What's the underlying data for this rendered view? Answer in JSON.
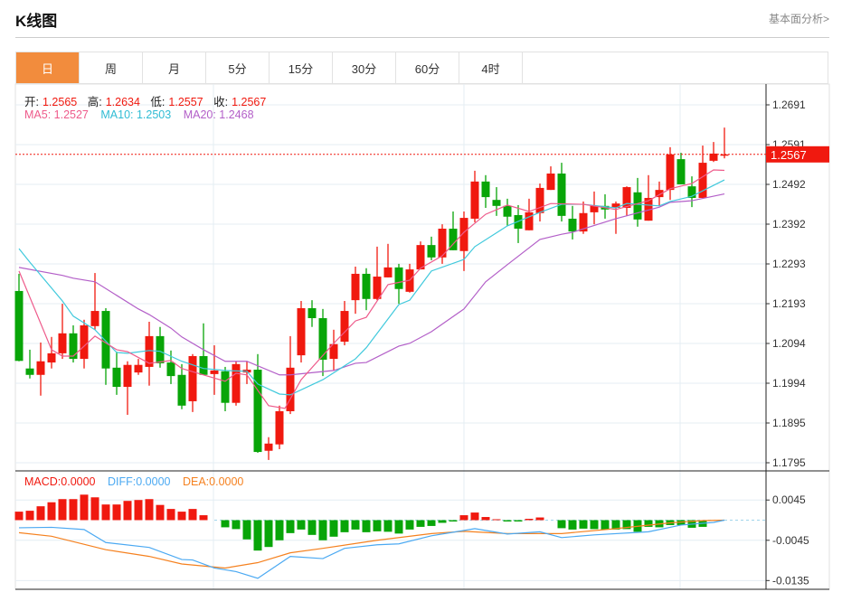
{
  "header": {
    "title": "K线图",
    "link": "基本面分析>"
  },
  "tabs": [
    {
      "label": "日",
      "active": true
    },
    {
      "label": "周"
    },
    {
      "label": "月"
    },
    {
      "label": "5分"
    },
    {
      "label": "15分"
    },
    {
      "label": "30分"
    },
    {
      "label": "60分"
    },
    {
      "label": "4时"
    }
  ],
  "ohlc_legend": {
    "open_label": "开:",
    "open": "1.2565",
    "high_label": "高:",
    "high": "1.2634",
    "low_label": "低:",
    "low": "1.2557",
    "close_label": "收:",
    "close": "1.2567"
  },
  "ma_legend": {
    "ma5": "MA5: 1.2527",
    "ma10": "MA10: 1.2503",
    "ma20": "MA20: 1.2468"
  },
  "macd_legend": {
    "macd": "MACD:0.0000",
    "diff": "DIFF:0.0000",
    "dea": "DEA:0.0000"
  },
  "colors": {
    "up": "#f0190f",
    "down": "#08a508",
    "ma5": "#ee5b8b",
    "ma10": "#40c9dc",
    "ma20": "#b35fc8",
    "diff": "#4ba9f2",
    "dea": "#f5811f",
    "accent": "#f28c3d"
  },
  "chart_data": [
    {
      "type": "candlestick",
      "title": "K线图",
      "y_ticks": [
        "1.2691",
        "1.2591",
        "1.2492",
        "1.2392",
        "1.2293",
        "1.2193",
        "1.2094",
        "1.1994",
        "1.1895",
        "1.1795"
      ],
      "ylim": [
        1.1795,
        1.2691
      ],
      "current_price": "1.2567",
      "candles": [
        [
          1.2225,
          1.2268,
          1.2049,
          1.205
        ],
        [
          1.2031,
          1.2078,
          1.2006,
          1.2015
        ],
        [
          1.2015,
          1.2096,
          1.1963,
          1.2049
        ],
        [
          1.2046,
          1.211,
          1.2031,
          1.2069
        ],
        [
          1.2069,
          1.2193,
          1.2055,
          1.2119
        ],
        [
          1.2119,
          1.2139,
          1.2046,
          1.2055
        ],
        [
          1.2055,
          1.2153,
          1.2031,
          1.2139
        ],
        [
          1.2137,
          1.227,
          1.2128,
          1.2175
        ],
        [
          1.2175,
          1.2182,
          1.199,
          1.2031
        ],
        [
          1.2033,
          1.2073,
          1.1965,
          1.1985
        ],
        [
          1.1985,
          1.2049,
          1.1915,
          1.204
        ],
        [
          1.2021,
          1.2055,
          1.2015,
          1.204
        ],
        [
          1.2035,
          1.2148,
          1.1988,
          1.2112
        ],
        [
          1.2112,
          1.2135,
          1.2033,
          1.2044
        ],
        [
          1.2046,
          1.2076,
          1.1992,
          1.2012
        ],
        [
          1.2015,
          1.2042,
          1.1929,
          1.1938
        ],
        [
          1.1949,
          1.2067,
          1.1922,
          1.2062
        ],
        [
          1.2062,
          1.2144,
          1.2015,
          1.2015
        ],
        [
          1.2017,
          1.2089,
          1.1965,
          1.2026
        ],
        [
          1.2024,
          1.2035,
          1.1924,
          1.1945
        ],
        [
          1.1945,
          1.2049,
          1.1938,
          1.2042
        ],
        [
          1.2021,
          1.2049,
          1.1992,
          1.2028
        ],
        [
          1.2028,
          1.2067,
          1.182,
          1.1822
        ],
        [
          1.1825,
          1.1859,
          1.1802,
          1.1843
        ],
        [
          1.1841,
          1.1938,
          1.1829,
          1.1924
        ],
        [
          1.1924,
          1.2112,
          1.1917,
          1.2033
        ],
        [
          1.2064,
          1.22,
          1.2046,
          1.2182
        ],
        [
          1.2182,
          1.2202,
          1.2135,
          1.2157
        ],
        [
          1.2157,
          1.218,
          1.2012,
          1.2053
        ],
        [
          1.2055,
          1.2128,
          1.2026,
          1.2092
        ],
        [
          1.2098,
          1.22,
          1.2089,
          1.2175
        ],
        [
          1.2202,
          1.2286,
          1.2168,
          1.2268
        ],
        [
          1.2268,
          1.2282,
          1.2177,
          1.2205
        ],
        [
          1.2205,
          1.2336,
          1.2202,
          1.2261
        ],
        [
          1.2259,
          1.2343,
          1.2259,
          1.2284
        ],
        [
          1.2284,
          1.2293,
          1.2193,
          1.223
        ],
        [
          1.2223,
          1.2293,
          1.2221,
          1.2279
        ],
        [
          1.2279,
          1.2349,
          1.2279,
          1.234
        ],
        [
          1.234,
          1.2361,
          1.2302,
          1.2309
        ],
        [
          1.2309,
          1.2392,
          1.2293,
          1.2381
        ],
        [
          1.2381,
          1.2424,
          1.2327,
          1.2327
        ],
        [
          1.2325,
          1.2424,
          1.2275,
          1.2408
        ],
        [
          1.2406,
          1.2526,
          1.2397,
          1.2499
        ],
        [
          1.2499,
          1.2515,
          1.2433,
          1.246
        ],
        [
          1.2453,
          1.2485,
          1.2413,
          1.2438
        ],
        [
          1.2438,
          1.2456,
          1.2388,
          1.2411
        ],
        [
          1.2415,
          1.244,
          1.2345,
          1.2381
        ],
        [
          1.2377,
          1.2456,
          1.2377,
          1.2422
        ],
        [
          1.242,
          1.2494,
          1.2399,
          1.2483
        ],
        [
          1.2478,
          1.2537,
          1.2478,
          1.2519
        ],
        [
          1.2519,
          1.2546,
          1.2399,
          1.2413
        ],
        [
          1.2406,
          1.2438,
          1.2354,
          1.2374
        ],
        [
          1.2374,
          1.2449,
          1.2368,
          1.242
        ],
        [
          1.2422,
          1.2474,
          1.2392,
          1.2438
        ],
        [
          1.2438,
          1.2467,
          1.2406,
          1.2429
        ],
        [
          1.2433,
          1.2449,
          1.2368,
          1.2444
        ],
        [
          1.2433,
          1.2487,
          1.2413,
          1.2485
        ],
        [
          1.2472,
          1.2508,
          1.2386,
          1.2404
        ],
        [
          1.2401,
          1.2515,
          1.2401,
          1.2458
        ],
        [
          1.246,
          1.2499,
          1.2438,
          1.2478
        ],
        [
          1.2478,
          1.2585,
          1.2453,
          1.2567
        ],
        [
          1.2555,
          1.2571,
          1.2492,
          1.2492
        ],
        [
          1.2487,
          1.2512,
          1.2435,
          1.2458
        ],
        [
          1.2458,
          1.2589,
          1.2458,
          1.2546
        ],
        [
          1.2551,
          1.2598,
          1.2548,
          1.2569
        ],
        [
          1.2565,
          1.2634,
          1.2557,
          1.2567
        ]
      ],
      "ma5": [
        [
          0,
          1.2275
        ],
        [
          3,
          1.2078
        ],
        [
          4,
          1.2062
        ],
        [
          5,
          1.2062
        ],
        [
          7,
          1.2112
        ],
        [
          9,
          1.2078
        ],
        [
          10,
          1.2073
        ],
        [
          12,
          1.2044
        ],
        [
          14,
          1.2051
        ],
        [
          15,
          1.2031
        ],
        [
          17,
          1.2015
        ],
        [
          19,
          1.1999
        ],
        [
          20,
          1.2019
        ],
        [
          21,
          1.2015
        ],
        [
          23,
          1.1938
        ],
        [
          24.5,
          1.1931
        ],
        [
          26,
          1.2003
        ],
        [
          29,
          1.2094
        ],
        [
          31,
          1.215
        ],
        [
          32,
          1.2159
        ],
        [
          34,
          1.2241
        ],
        [
          36,
          1.2252
        ],
        [
          37,
          1.2282
        ],
        [
          39,
          1.2313
        ],
        [
          41,
          1.2372
        ],
        [
          43,
          1.2417
        ],
        [
          45,
          1.244
        ],
        [
          47,
          1.2424
        ],
        [
          49,
          1.2444
        ],
        [
          52,
          1.2442
        ],
        [
          55,
          1.2429
        ],
        [
          58,
          1.2451
        ],
        [
          60,
          1.2481
        ],
        [
          62,
          1.2494
        ],
        [
          64,
          1.2528
        ],
        [
          65,
          1.2527
        ]
      ],
      "ma10": [
        [
          0,
          1.2331
        ],
        [
          1,
          1.2297
        ],
        [
          4,
          1.22
        ],
        [
          5,
          1.2162
        ],
        [
          7,
          1.2128
        ],
        [
          9,
          1.2071
        ],
        [
          10,
          1.2069
        ],
        [
          12,
          1.2076
        ],
        [
          13,
          1.2074
        ],
        [
          15,
          1.2049
        ],
        [
          17,
          1.2031
        ],
        [
          19,
          1.2026
        ],
        [
          21,
          1.2024
        ],
        [
          22,
          1.1992
        ],
        [
          24,
          1.1967
        ],
        [
          25,
          1.1965
        ],
        [
          28,
          1.2003
        ],
        [
          31,
          1.2055
        ],
        [
          32,
          1.2083
        ],
        [
          35,
          1.2191
        ],
        [
          36,
          1.2202
        ],
        [
          38,
          1.2275
        ],
        [
          41,
          1.2304
        ],
        [
          42,
          1.2336
        ],
        [
          45,
          1.2388
        ],
        [
          48,
          1.2422
        ],
        [
          50,
          1.2442
        ],
        [
          52,
          1.2442
        ],
        [
          55,
          1.2433
        ],
        [
          56,
          1.2444
        ],
        [
          59,
          1.2438
        ],
        [
          60,
          1.2449
        ],
        [
          62,
          1.2462
        ],
        [
          65,
          1.2503
        ]
      ],
      "ma20": [
        [
          0,
          1.2284
        ],
        [
          4,
          1.2264
        ],
        [
          5,
          1.2257
        ],
        [
          7,
          1.2248
        ],
        [
          9,
          1.2214
        ],
        [
          11,
          1.218
        ],
        [
          12,
          1.2166
        ],
        [
          14,
          1.2132
        ],
        [
          15,
          1.211
        ],
        [
          17,
          1.2078
        ],
        [
          19,
          1.2049
        ],
        [
          21,
          1.2049
        ],
        [
          24,
          1.2015
        ],
        [
          25,
          1.2015
        ],
        [
          29,
          1.2026
        ],
        [
          31,
          1.2044
        ],
        [
          32,
          1.2046
        ],
        [
          35,
          1.2087
        ],
        [
          36,
          1.2094
        ],
        [
          38,
          1.2123
        ],
        [
          41,
          1.218
        ],
        [
          43,
          1.2248
        ],
        [
          45,
          1.2291
        ],
        [
          48,
          1.2354
        ],
        [
          50,
          1.2367
        ],
        [
          51,
          1.2372
        ],
        [
          55,
          1.2406
        ],
        [
          59,
          1.2435
        ],
        [
          60,
          1.2447
        ],
        [
          62,
          1.2451
        ],
        [
          65,
          1.2468
        ]
      ]
    },
    {
      "type": "bar+line",
      "title": "MACD",
      "y_ticks": [
        "0.0045",
        "-0.0045",
        "-0.0135"
      ],
      "macd": [
        0.0019,
        0.0021,
        0.0031,
        0.004,
        0.0047,
        0.0047,
        0.0057,
        0.0051,
        0.0035,
        0.0035,
        0.0043,
        0.0045,
        0.0047,
        0.0034,
        0.0025,
        0.0019,
        0.0025,
        0.0011,
        0,
        -0.0016,
        -0.002,
        -0.0043,
        -0.0068,
        -0.006,
        -0.0045,
        -0.0029,
        -0.0021,
        -0.0033,
        -0.0045,
        -0.0037,
        -0.0027,
        -0.0021,
        -0.0027,
        -0.0025,
        -0.0026,
        -0.003,
        -0.0021,
        -0.0015,
        -0.0013,
        -0.0006,
        -0.0003,
        0.0011,
        0.0017,
        0.0007,
        0.0002,
        -0.0003,
        -0.0003,
        0.0003,
        0.0006,
        0,
        -0.0018,
        -0.0021,
        -0.0019,
        -0.002,
        -0.0021,
        -0.0021,
        -0.002,
        -0.0026,
        -0.0015,
        -0.0016,
        -0.0011,
        -0.0011,
        -0.0017,
        -0.0015,
        0,
        0
      ],
      "diff": [
        [
          0,
          -0.0017
        ],
        [
          3,
          -0.0016
        ],
        [
          6,
          -0.0021
        ],
        [
          8,
          -0.005
        ],
        [
          12,
          -0.0061
        ],
        [
          15,
          -0.0088
        ],
        [
          16,
          -0.0089
        ],
        [
          18,
          -0.0107
        ],
        [
          20,
          -0.0115
        ],
        [
          22,
          -0.013
        ],
        [
          25,
          -0.0081
        ],
        [
          28,
          -0.0086
        ],
        [
          30,
          -0.0063
        ],
        [
          33,
          -0.0055
        ],
        [
          35,
          -0.0053
        ],
        [
          38,
          -0.0035
        ],
        [
          40,
          -0.0027
        ],
        [
          42,
          -0.0019
        ],
        [
          45,
          -0.0031
        ],
        [
          48,
          -0.0026
        ],
        [
          50,
          -0.0039
        ],
        [
          53,
          -0.0033
        ],
        [
          58,
          -0.0026
        ],
        [
          61,
          -0.0011
        ],
        [
          64,
          -0.0005
        ],
        [
          65,
          0
        ]
      ],
      "dea": [
        [
          0,
          -0.0028
        ],
        [
          3,
          -0.0036
        ],
        [
          8,
          -0.0066
        ],
        [
          12,
          -0.0081
        ],
        [
          15,
          -0.0098
        ],
        [
          19,
          -0.0107
        ],
        [
          22,
          -0.0095
        ],
        [
          25,
          -0.0073
        ],
        [
          28,
          -0.0063
        ],
        [
          33,
          -0.0045
        ],
        [
          38,
          -0.003
        ],
        [
          41,
          -0.0025
        ],
        [
          45,
          -0.003
        ],
        [
          50,
          -0.003
        ],
        [
          55,
          -0.0019
        ],
        [
          60,
          -0.0006
        ],
        [
          63,
          -0.0001
        ],
        [
          65,
          0
        ]
      ]
    }
  ]
}
